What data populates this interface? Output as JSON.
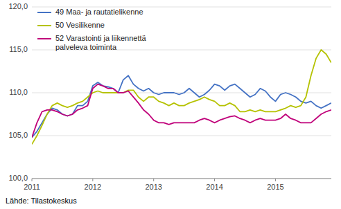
{
  "chart_data": {
    "type": "line",
    "source": "Lähde: Tilastokeskus",
    "x": [
      2011,
      2011.0833333333333,
      2011.1666666666667,
      2011.25,
      2011.3333333333333,
      2011.4166666666667,
      2011.5,
      2011.5833333333333,
      2011.6666666666667,
      2011.75,
      2011.8333333333333,
      2011.9166666666667,
      2012,
      2012.0833333333333,
      2012.1666666666667,
      2012.25,
      2012.3333333333333,
      2012.4166666666667,
      2012.5,
      2012.5833333333333,
      2012.6666666666667,
      2012.75,
      2012.8333333333333,
      2012.9166666666667,
      2013,
      2013.0833333333333,
      2013.1666666666667,
      2013.25,
      2013.3333333333333,
      2013.4166666666667,
      2013.5,
      2013.5833333333333,
      2013.6666666666667,
      2013.75,
      2013.8333333333333,
      2013.9166666666667,
      2014,
      2014.0833333333333,
      2014.1666666666667,
      2014.25,
      2014.3333333333333,
      2014.4166666666667,
      2014.5,
      2014.5833333333333,
      2014.6666666666667,
      2014.75,
      2014.8333333333333,
      2014.9166666666667,
      2015,
      2015.0833333333333,
      2015.1666666666667,
      2015.25,
      2015.3333333333333,
      2015.4166666666667,
      2015.5,
      2015.5833333333333,
      2015.6666666666667,
      2015.75,
      2015.8333333333333,
      2015.9166666666667
    ],
    "series": [
      {
        "name": "49 Maa- ja rautatielikenne",
        "color": "#4472C4",
        "values": [
          104.8,
          105.5,
          106.5,
          107.5,
          108.2,
          108.0,
          107.5,
          107.3,
          107.5,
          108.5,
          108.5,
          109.0,
          110.8,
          111.2,
          110.8,
          110.7,
          110.5,
          110.0,
          111.5,
          112.0,
          111.0,
          110.5,
          110.2,
          110.5,
          110.0,
          109.8,
          110.0,
          110.0,
          110.0,
          109.8,
          110.0,
          110.5,
          110.0,
          109.5,
          109.8,
          110.3,
          111.0,
          110.8,
          110.3,
          110.8,
          111.0,
          110.5,
          110.0,
          109.5,
          109.8,
          110.5,
          110.2,
          109.5,
          109.0,
          109.8,
          110.0,
          109.8,
          109.5,
          109.0,
          108.8,
          109.0,
          108.5,
          108.2,
          108.5,
          108.8
        ]
      },
      {
        "name": "50 Vesilikenne",
        "color": "#b5c200",
        "values": [
          104.0,
          105.0,
          106.2,
          107.5,
          108.5,
          108.8,
          108.5,
          108.3,
          108.5,
          108.8,
          109.0,
          109.5,
          110.0,
          110.2,
          110.0,
          110.0,
          110.0,
          110.0,
          110.0,
          110.3,
          110.3,
          109.5,
          109.0,
          109.5,
          109.5,
          109.0,
          108.8,
          108.5,
          108.8,
          108.5,
          108.5,
          108.8,
          109.0,
          109.2,
          109.5,
          109.2,
          109.0,
          108.5,
          108.5,
          108.8,
          108.5,
          107.8,
          107.8,
          108.0,
          107.8,
          108.0,
          107.8,
          107.8,
          107.8,
          108.0,
          108.2,
          108.5,
          108.3,
          108.5,
          109.5,
          112.0,
          114.0,
          115.0,
          114.5,
          113.5
        ]
      },
      {
        "name": "52 Varastointi ja liikennettä\npalveleva toiminta",
        "color": "#c0007a",
        "values": [
          104.8,
          106.5,
          107.8,
          108.0,
          108.0,
          107.8,
          107.5,
          107.3,
          107.5,
          108.0,
          108.2,
          108.5,
          110.5,
          111.0,
          110.8,
          110.5,
          110.5,
          110.0,
          110.0,
          110.2,
          109.5,
          108.8,
          108.0,
          107.5,
          106.8,
          106.5,
          106.5,
          106.3,
          106.5,
          106.5,
          106.5,
          106.5,
          106.5,
          106.8,
          107.0,
          106.8,
          106.5,
          106.8,
          107.0,
          107.2,
          107.3,
          107.0,
          106.8,
          106.5,
          106.8,
          107.0,
          106.8,
          106.8,
          106.8,
          107.0,
          107.5,
          107.0,
          106.8,
          106.5,
          106.5,
          106.5,
          107.0,
          107.5,
          107.8,
          108.0
        ]
      }
    ],
    "xlim": [
      2011.0,
      2015.917
    ],
    "xticks": [
      2011,
      2012,
      2013,
      2014,
      2015
    ],
    "ylim": [
      100.0,
      120.0
    ],
    "yticks": [
      {
        "value": 100.0,
        "label": "100,0"
      },
      {
        "value": 105.0,
        "label": "105,0"
      },
      {
        "value": 110.0,
        "label": "110,0"
      },
      {
        "value": 115.0,
        "label": "115,0"
      },
      {
        "value": 120.0,
        "label": "120,0"
      }
    ],
    "grid": true,
    "legend": "upper left"
  }
}
